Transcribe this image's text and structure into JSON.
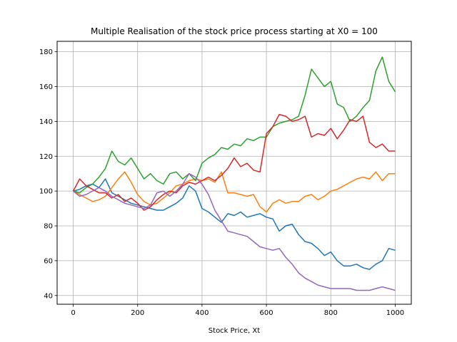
{
  "chart_data": {
    "type": "line",
    "title": "Multiple Realisation of the stock price process starting at X0 = 100",
    "xlabel": "Stock Price, Xt",
    "ylabel": "",
    "xlim": [
      -50,
      1050
    ],
    "ylim": [
      35,
      186
    ],
    "xticks": [
      0,
      200,
      400,
      600,
      800,
      1000
    ],
    "yticks": [
      40,
      60,
      80,
      100,
      120,
      140,
      160,
      180
    ],
    "grid": true,
    "series": [
      {
        "color": "#1f77b4",
        "x": [
          0,
          20,
          40,
          60,
          80,
          100,
          120,
          140,
          160,
          180,
          200,
          220,
          240,
          260,
          280,
          300,
          320,
          340,
          360,
          380,
          400,
          420,
          440,
          460,
          480,
          500,
          520,
          540,
          560,
          580,
          600,
          620,
          640,
          660,
          680,
          700,
          720,
          740,
          760,
          780,
          800,
          820,
          840,
          860,
          880,
          900,
          920,
          940,
          960,
          980,
          1000
        ],
        "y": [
          100,
          101,
          103,
          104,
          102,
          107,
          99,
          97,
          95,
          93,
          92,
          91,
          90,
          89,
          89,
          91,
          93,
          96,
          103,
          100,
          90,
          88,
          85,
          82,
          87,
          86,
          88,
          85,
          86,
          87,
          85,
          84,
          77,
          80,
          81,
          75,
          71,
          70,
          67,
          63,
          65,
          60,
          57,
          57,
          58,
          56,
          55,
          58,
          60,
          67,
          66
        ]
      },
      {
        "color": "#ff7f0e",
        "x": [
          0,
          20,
          40,
          60,
          80,
          100,
          120,
          140,
          160,
          180,
          200,
          220,
          240,
          260,
          280,
          300,
          320,
          340,
          360,
          380,
          400,
          420,
          440,
          460,
          480,
          500,
          520,
          540,
          560,
          580,
          600,
          620,
          640,
          660,
          680,
          700,
          720,
          740,
          760,
          780,
          800,
          820,
          840,
          860,
          880,
          900,
          920,
          940,
          960,
          980,
          1000
        ],
        "y": [
          100,
          98,
          96,
          94,
          95,
          97,
          102,
          107,
          111,
          105,
          98,
          94,
          92,
          93,
          96,
          99,
          103,
          104,
          106,
          107,
          106,
          107,
          105,
          111,
          99,
          99,
          98,
          97,
          98,
          91,
          88,
          93,
          95,
          93,
          94,
          94,
          97,
          98,
          95,
          97,
          100,
          101,
          103,
          105,
          107,
          108,
          107,
          111,
          106,
          110,
          110
        ]
      },
      {
        "color": "#2ca02c",
        "x": [
          0,
          20,
          40,
          60,
          80,
          100,
          120,
          140,
          160,
          180,
          200,
          220,
          240,
          260,
          280,
          300,
          320,
          340,
          360,
          380,
          400,
          420,
          440,
          460,
          480,
          500,
          520,
          540,
          560,
          580,
          600,
          620,
          640,
          660,
          680,
          700,
          720,
          740,
          760,
          780,
          800,
          820,
          840,
          860,
          880,
          900,
          920,
          940,
          960,
          980,
          1000
        ],
        "y": [
          100,
          99,
          102,
          104,
          108,
          113,
          123,
          117,
          115,
          119,
          113,
          107,
          110,
          106,
          104,
          110,
          111,
          107,
          110,
          106,
          116,
          119,
          121,
          125,
          124,
          127,
          126,
          130,
          129,
          131,
          131,
          137,
          139,
          140,
          141,
          143,
          155,
          170,
          165,
          160,
          163,
          150,
          148,
          140,
          143,
          148,
          152,
          169,
          177,
          163,
          157
        ]
      },
      {
        "color": "#d62728",
        "x": [
          0,
          20,
          40,
          60,
          80,
          100,
          120,
          140,
          160,
          180,
          200,
          220,
          240,
          260,
          280,
          300,
          320,
          340,
          360,
          380,
          400,
          420,
          440,
          460,
          480,
          500,
          520,
          540,
          560,
          580,
          600,
          620,
          640,
          660,
          680,
          700,
          720,
          740,
          760,
          780,
          800,
          820,
          840,
          860,
          880,
          900,
          920,
          940,
          960,
          980,
          1000
        ],
        "y": [
          100,
          107,
          103,
          101,
          99,
          99,
          96,
          98,
          94,
          96,
          93,
          89,
          91,
          95,
          98,
          100,
          99,
          103,
          105,
          104,
          106,
          108,
          106,
          109,
          113,
          119,
          114,
          116,
          112,
          111,
          133,
          137,
          144,
          143,
          140,
          141,
          143,
          131,
          133,
          132,
          136,
          130,
          135,
          141,
          140,
          143,
          128,
          125,
          127,
          123,
          123
        ]
      },
      {
        "color": "#9467bd",
        "x": [
          0,
          20,
          40,
          60,
          80,
          100,
          120,
          140,
          160,
          180,
          200,
          220,
          240,
          260,
          280,
          300,
          320,
          340,
          360,
          380,
          400,
          420,
          440,
          460,
          480,
          500,
          520,
          540,
          560,
          580,
          600,
          620,
          640,
          660,
          680,
          700,
          720,
          740,
          760,
          780,
          800,
          820,
          840,
          860,
          880,
          900,
          920,
          940,
          960,
          980,
          1000
        ],
        "y": [
          100,
          97,
          98,
          100,
          102,
          100,
          97,
          95,
          93,
          92,
          91,
          90,
          92,
          99,
          100,
          97,
          100,
          104,
          110,
          108,
          104,
          98,
          89,
          83,
          77,
          76,
          75,
          74,
          71,
          68,
          67,
          66,
          67,
          62,
          58,
          53,
          50,
          48,
          46,
          45,
          44,
          44,
          44,
          44,
          43,
          43,
          43,
          44,
          45,
          44,
          43
        ]
      }
    ]
  }
}
